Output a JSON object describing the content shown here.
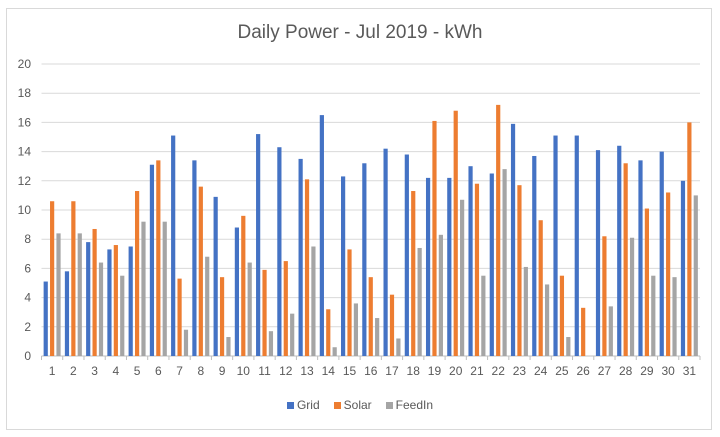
{
  "chart_data": {
    "type": "bar",
    "title": "Daily Power - Jul 2019 - kWh",
    "xlabel": "",
    "ylabel": "",
    "ylim": [
      0,
      20
    ],
    "yticks": [
      0,
      2,
      4,
      6,
      8,
      10,
      12,
      14,
      16,
      18,
      20
    ],
    "grid": true,
    "legend_position": "bottom",
    "categories": [
      "1",
      "2",
      "3",
      "4",
      "5",
      "6",
      "7",
      "8",
      "9",
      "10",
      "11",
      "12",
      "13",
      "14",
      "15",
      "16",
      "17",
      "18",
      "19",
      "20",
      "21",
      "22",
      "23",
      "24",
      "25",
      "26",
      "27",
      "28",
      "29",
      "30",
      "31"
    ],
    "series": [
      {
        "name": "Grid",
        "color": "#4472c4",
        "values": [
          5.1,
          5.8,
          7.8,
          7.3,
          7.5,
          13.1,
          15.1,
          13.4,
          10.9,
          8.8,
          15.2,
          14.3,
          13.5,
          16.5,
          12.3,
          13.2,
          14.2,
          13.8,
          12.2,
          12.2,
          13.0,
          12.5,
          15.9,
          13.7,
          15.1,
          15.1,
          14.1,
          14.4,
          13.4,
          14.0,
          12.0
        ]
      },
      {
        "name": "Solar",
        "color": "#ed7d31",
        "values": [
          10.6,
          10.6,
          8.7,
          7.6,
          11.3,
          13.4,
          5.3,
          11.6,
          5.4,
          9.6,
          5.9,
          6.5,
          12.1,
          3.2,
          7.3,
          5.4,
          4.2,
          11.3,
          16.1,
          16.8,
          11.8,
          17.2,
          11.7,
          9.3,
          5.5,
          3.3,
          8.2,
          13.2,
          10.1,
          11.2,
          16.0
        ]
      },
      {
        "name": "FeedIn",
        "color": "#a5a5a5",
        "values": [
          8.4,
          8.4,
          6.4,
          5.5,
          9.2,
          9.2,
          1.8,
          6.8,
          1.3,
          6.4,
          1.7,
          2.9,
          7.5,
          0.6,
          3.6,
          2.6,
          1.2,
          7.4,
          8.3,
          10.7,
          5.5,
          12.8,
          6.1,
          4.9,
          1.3,
          0,
          3.4,
          8.1,
          5.5,
          5.4,
          11.0
        ]
      }
    ]
  }
}
